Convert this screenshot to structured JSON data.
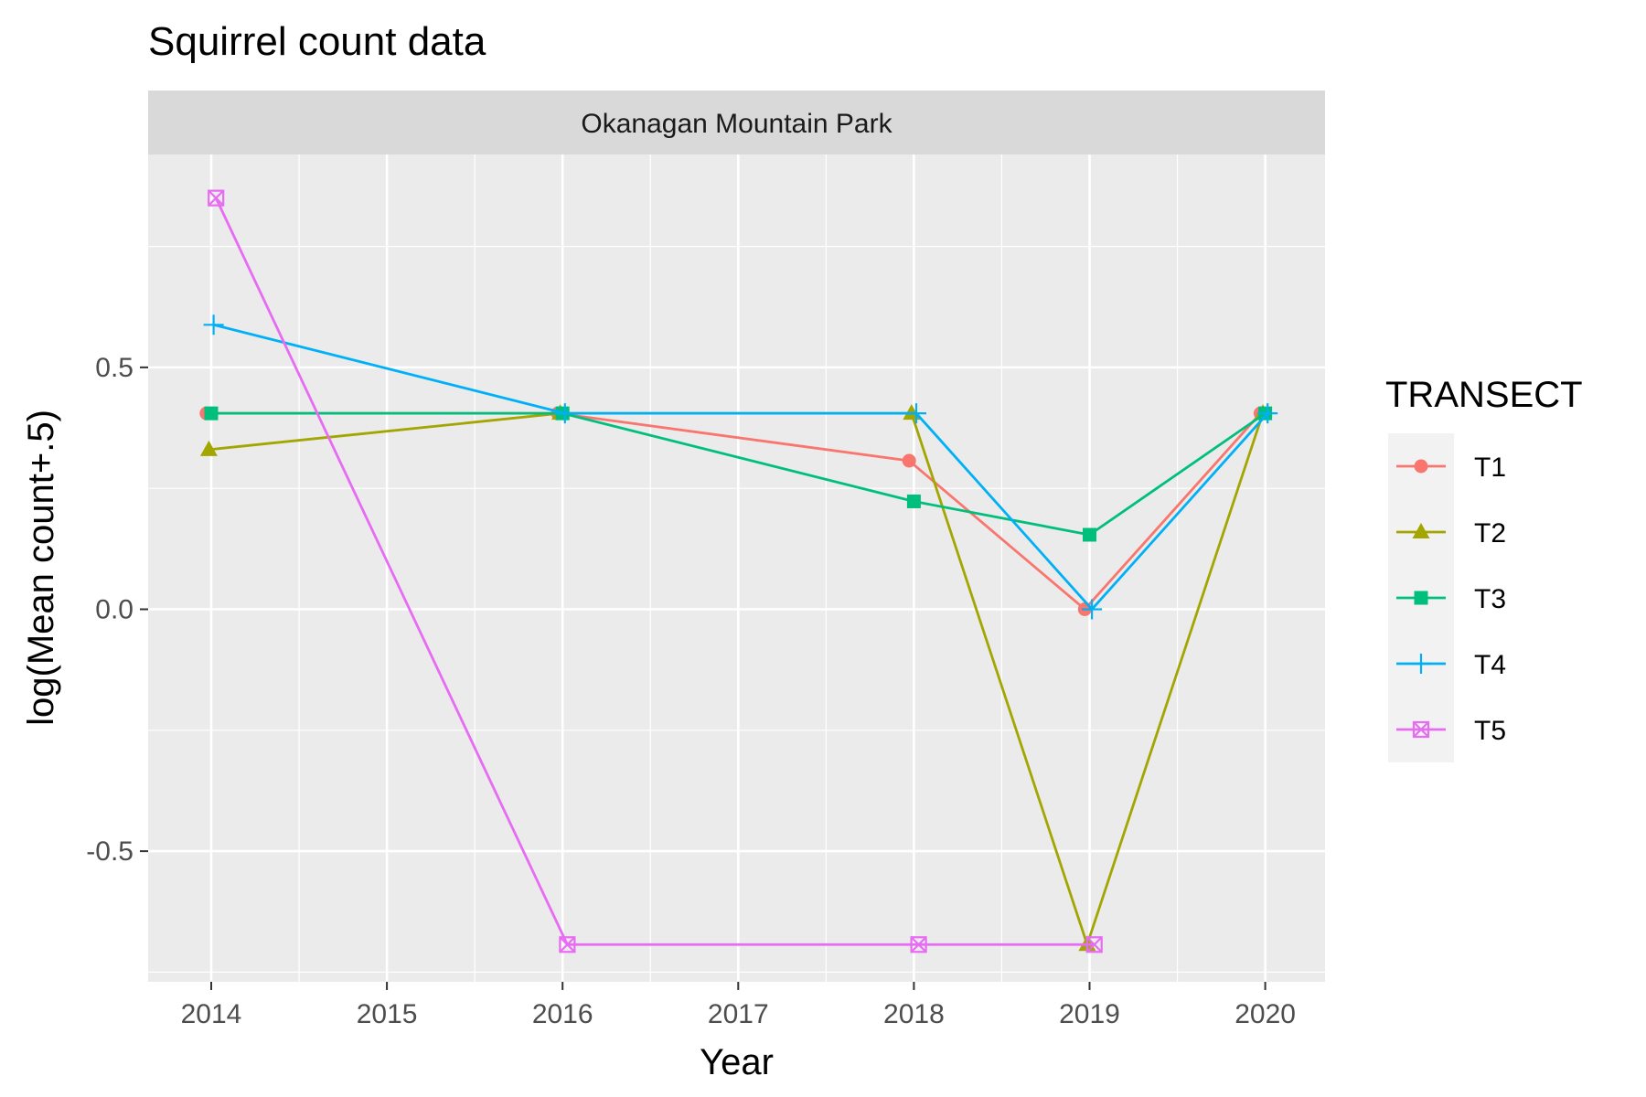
{
  "chart_data": {
    "type": "line",
    "title": "Squirrel count data",
    "facet_label": "Okanagan Mountain Park",
    "xlabel": "Year",
    "ylabel": "log(Mean count+.5)",
    "x_ticks": [
      "2014",
      "2015",
      "2016",
      "2017",
      "2018",
      "2019",
      "2020"
    ],
    "y_ticks": [
      {
        "value": -0.5,
        "label": "-0.5"
      },
      {
        "value": 0.0,
        "label": "0.0"
      },
      {
        "value": 0.5,
        "label": "0.5"
      }
    ],
    "xlim": [
      2013.65,
      2020.35
    ],
    "ylim": [
      -0.77,
      0.94
    ],
    "grid": true,
    "legend": {
      "title": "TRANSECT",
      "position": "right"
    },
    "series": [
      {
        "name": "T1",
        "color": "#F8766D",
        "shape": "circle",
        "x": [
          2014,
          2016,
          2018,
          2019,
          2020
        ],
        "y": [
          0.405,
          0.405,
          0.307,
          0.0,
          0.405
        ]
      },
      {
        "name": "T2",
        "color": "#A3A500",
        "shape": "triangle",
        "x": [
          2014,
          2016,
          2018,
          2019,
          2020
        ],
        "y": [
          0.33,
          0.405,
          0.405,
          -0.693,
          0.405
        ]
      },
      {
        "name": "T3",
        "color": "#00BF7D",
        "shape": "square",
        "x": [
          2014,
          2016,
          2018,
          2019,
          2020
        ],
        "y": [
          0.405,
          0.405,
          0.223,
          0.154,
          0.405
        ]
      },
      {
        "name": "T4",
        "color": "#00B0F6",
        "shape": "plus",
        "x": [
          2014,
          2016,
          2018,
          2019,
          2020
        ],
        "y": [
          0.588,
          0.405,
          0.405,
          0.0,
          0.405
        ]
      },
      {
        "name": "T5",
        "color": "#E76BF3",
        "shape": "square-cross",
        "x": [
          2014,
          2016,
          2018,
          2019
        ],
        "y": [
          0.85,
          -0.693,
          -0.693,
          -0.693
        ]
      }
    ]
  }
}
